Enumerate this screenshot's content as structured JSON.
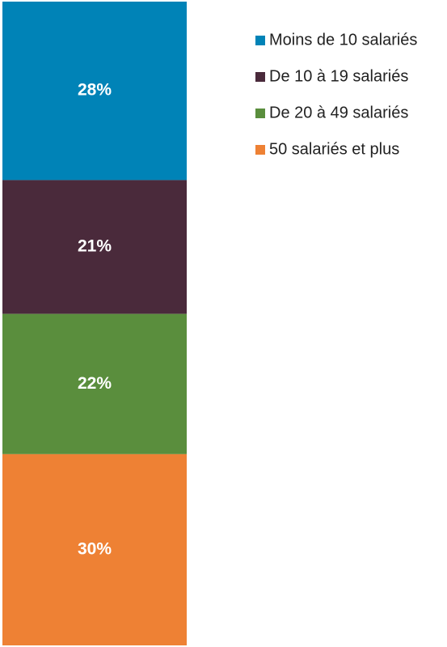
{
  "chart_data": {
    "type": "bar",
    "stacked": true,
    "series": [
      {
        "name": "Moins de 10 salariés",
        "color": "#0083b7",
        "values": [
          28
        ],
        "value_labels": [
          "28%"
        ]
      },
      {
        "name": "De 10 à 19 salariés",
        "color": "#4a2a3b",
        "values": [
          21
        ],
        "value_labels": [
          "21%"
        ]
      },
      {
        "name": "De 20 à 49 salariés",
        "color": "#5a8e3d",
        "values": [
          22
        ],
        "value_labels": [
          "22%"
        ]
      },
      {
        "name": "50 salariés et plus",
        "color": "#ee8134",
        "values": [
          30
        ],
        "value_labels": [
          "30%"
        ]
      }
    ],
    "legend": "top-right"
  }
}
